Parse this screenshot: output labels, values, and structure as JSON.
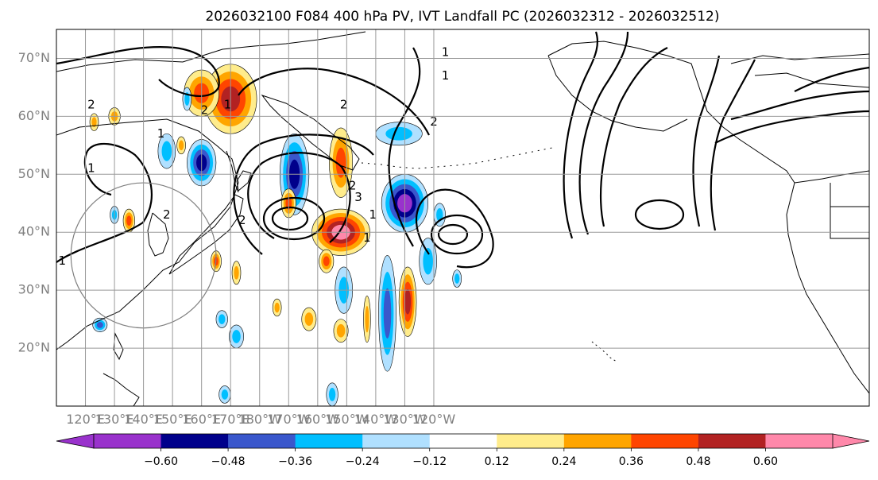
{
  "chart_data": {
    "type": "map",
    "title": "2026032100 F084 400 hPa PV, IVT Landfall PC (2026032312 - 2026032512)",
    "map": {
      "lon_range_east": [
        110,
        390
      ],
      "lat_range": [
        10,
        75
      ],
      "lat_ticks": [
        {
          "value": 20,
          "label": "20°N"
        },
        {
          "value": 30,
          "label": "30°N"
        },
        {
          "value": 40,
          "label": "40°N"
        },
        {
          "value": 50,
          "label": "50°N"
        },
        {
          "value": 60,
          "label": "60°N"
        },
        {
          "value": 70,
          "label": "70°N"
        }
      ],
      "lon_ticks": [
        {
          "value": 120,
          "label": "120°E"
        },
        {
          "value": 130,
          "label": "130°E"
        },
        {
          "value": 140,
          "label": "140°E"
        },
        {
          "value": 150,
          "label": "150°E"
        },
        {
          "value": 160,
          "label": "160°E"
        },
        {
          "value": 170,
          "label": "170°E"
        },
        {
          "value": 180,
          "label": "180°W"
        },
        {
          "value": 190,
          "label": "170°W"
        },
        {
          "value": 200,
          "label": "160°W"
        },
        {
          "value": 210,
          "label": "150°W"
        },
        {
          "value": 220,
          "label": "140°W"
        },
        {
          "value": 230,
          "label": "130°W"
        },
        {
          "value": 240,
          "label": "120°W"
        }
      ],
      "circle": {
        "center_lon": 140,
        "center_lat": 36,
        "radius_deg": 25
      }
    },
    "colorbar": {
      "levels": [
        -0.6,
        -0.48,
        -0.36,
        -0.24,
        -0.12,
        0.12,
        0.24,
        0.36,
        0.48,
        0.6
      ],
      "tick_labels": [
        "−0.60",
        "−0.48",
        "−0.36",
        "−0.24",
        "−0.12",
        "0.12",
        "0.24",
        "0.36",
        "0.48",
        "0.60"
      ],
      "colors": [
        "#9932CC",
        "#00008B",
        "#3A57CC",
        "#00BFFF",
        "#B0E0FF",
        "#FFFFFF",
        "#FFEC8B",
        "#FFA500",
        "#FF4500",
        "#B22222",
        "#FF88AA"
      ],
      "extend": "both"
    },
    "shaded_anomalies": [
      {
        "lon": 170,
        "lat": 63,
        "value": 0.55,
        "lonr": 9,
        "latr": 6
      },
      {
        "lon": 160,
        "lat": 64,
        "value": 0.4,
        "lonr": 6,
        "latr": 4
      },
      {
        "lon": 160,
        "lat": 52,
        "value": -0.55,
        "lonr": 5,
        "latr": 4
      },
      {
        "lon": 148,
        "lat": 54,
        "value": -0.3,
        "lonr": 3,
        "latr": 3
      },
      {
        "lon": 192,
        "lat": 50,
        "value": -0.55,
        "lonr": 5,
        "latr": 7
      },
      {
        "lon": 208,
        "lat": 52,
        "value": 0.45,
        "lonr": 4,
        "latr": 6
      },
      {
        "lon": 208,
        "lat": 40,
        "value": 0.65,
        "lonr": 10,
        "latr": 4
      },
      {
        "lon": 230,
        "lat": 45,
        "value": -0.6,
        "lonr": 8,
        "latr": 5
      },
      {
        "lon": 228,
        "lat": 57,
        "value": -0.3,
        "lonr": 8,
        "latr": 2
      },
      {
        "lon": 224,
        "lat": 26,
        "value": -0.45,
        "lonr": 3,
        "latr": 10
      },
      {
        "lon": 231,
        "lat": 28,
        "value": 0.5,
        "lonr": 3,
        "latr": 6
      },
      {
        "lon": 209,
        "lat": 30,
        "value": -0.3,
        "lonr": 3,
        "latr": 4
      },
      {
        "lon": 203,
        "lat": 35,
        "value": 0.4,
        "lonr": 2.5,
        "latr": 2
      },
      {
        "lon": 208,
        "lat": 23,
        "value": 0.35,
        "lonr": 2.5,
        "latr": 2
      },
      {
        "lon": 190,
        "lat": 45,
        "value": 0.45,
        "lonr": 2.5,
        "latr": 2.5
      },
      {
        "lon": 135,
        "lat": 42,
        "value": 0.4,
        "lonr": 2,
        "latr": 2
      },
      {
        "lon": 165,
        "lat": 35,
        "value": 0.4,
        "lonr": 1.8,
        "latr": 1.8
      },
      {
        "lon": 172,
        "lat": 33,
        "value": 0.3,
        "lonr": 1.5,
        "latr": 2
      },
      {
        "lon": 155,
        "lat": 63,
        "value": -0.3,
        "lonr": 1.5,
        "latr": 2
      },
      {
        "lon": 130,
        "lat": 60,
        "value": 0.35,
        "lonr": 2,
        "latr": 1.5
      },
      {
        "lon": 153,
        "lat": 55,
        "value": 0.3,
        "lonr": 1.5,
        "latr": 1.5
      },
      {
        "lon": 197,
        "lat": 25,
        "value": 0.35,
        "lonr": 2.5,
        "latr": 2
      },
      {
        "lon": 186,
        "lat": 27,
        "value": 0.25,
        "lonr": 1.5,
        "latr": 1.5
      },
      {
        "lon": 167,
        "lat": 25,
        "value": -0.3,
        "lonr": 2,
        "latr": 1.5
      },
      {
        "lon": 172,
        "lat": 22,
        "value": -0.3,
        "lonr": 2.5,
        "latr": 2
      },
      {
        "lon": 125,
        "lat": 24,
        "value": -0.45,
        "lonr": 2.5,
        "latr": 1.2
      },
      {
        "lon": 238,
        "lat": 35,
        "value": -0.3,
        "lonr": 3,
        "latr": 4
      },
      {
        "lon": 242,
        "lat": 43,
        "value": -0.3,
        "lonr": 2,
        "latr": 2
      },
      {
        "lon": 248,
        "lat": 32,
        "value": -0.3,
        "lonr": 1.5,
        "latr": 1.5
      },
      {
        "lon": 217,
        "lat": 25,
        "value": 0.3,
        "lonr": 1.2,
        "latr": 4
      },
      {
        "lon": 123,
        "lat": 59,
        "value": 0.3,
        "lonr": 1.5,
        "latr": 1.5
      },
      {
        "lon": 130,
        "lat": 43,
        "value": -0.25,
        "lonr": 1.5,
        "latr": 1.5
      },
      {
        "lon": 168,
        "lat": 12,
        "value": -0.3,
        "lonr": 2,
        "latr": 1.5
      },
      {
        "lon": 205,
        "lat": 12,
        "value": -0.35,
        "lonr": 2,
        "latr": 2
      }
    ],
    "contour_labels": [
      {
        "lon": 122,
        "lat": 62,
        "text": "2"
      },
      {
        "lon": 122,
        "lat": 51,
        "text": "1"
      },
      {
        "lon": 112,
        "lat": 35,
        "text": "1"
      },
      {
        "lon": 146,
        "lat": 57,
        "text": "1"
      },
      {
        "lon": 161,
        "lat": 61,
        "text": "2"
      },
      {
        "lon": 169,
        "lat": 62,
        "text": "1"
      },
      {
        "lon": 148,
        "lat": 43,
        "text": "2"
      },
      {
        "lon": 174,
        "lat": 42,
        "text": "2"
      },
      {
        "lon": 209,
        "lat": 62,
        "text": "2"
      },
      {
        "lon": 212,
        "lat": 48,
        "text": "2"
      },
      {
        "lon": 214,
        "lat": 46,
        "text": "3"
      },
      {
        "lon": 219,
        "lat": 43,
        "text": "1"
      },
      {
        "lon": 217,
        "lat": 39,
        "text": "1"
      },
      {
        "lon": 244,
        "lat": 67,
        "text": "1"
      },
      {
        "lon": 244,
        "lat": 71,
        "text": "1"
      },
      {
        "lon": 240,
        "lat": 59,
        "text": "2"
      }
    ]
  }
}
